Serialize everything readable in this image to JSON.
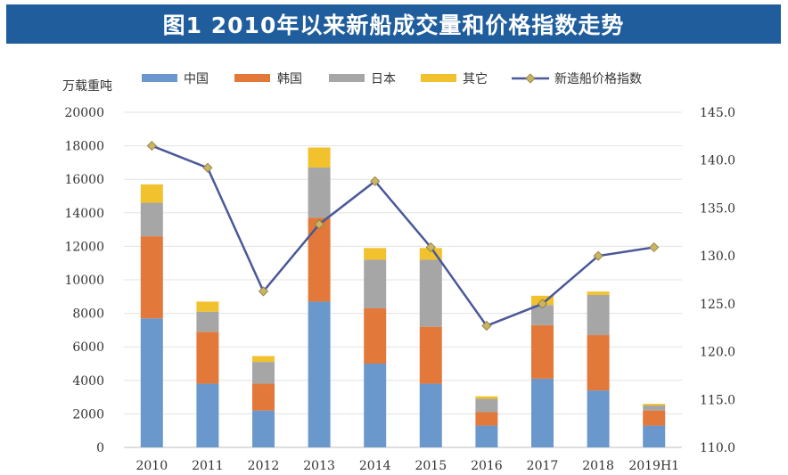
{
  "title": "图1 2010年以来新船成交量和价格指数走势",
  "unit_label": "万载重吨",
  "colors": {
    "中国": "#6a98cc",
    "韩国": "#e2793a",
    "日本": "#a6a6a6",
    "其它": "#f2c12e",
    "index_line": "#4a5899",
    "index_marker": "#c9b466",
    "title_bg": "#1f5d9c"
  },
  "chart_data": {
    "type": "bar",
    "stacked": true,
    "categories": [
      "2010",
      "2011",
      "2012",
      "2013",
      "2014",
      "2015",
      "2016",
      "2017",
      "2018",
      "2019H1"
    ],
    "series": [
      {
        "name": "中国",
        "values": [
          7700,
          3800,
          2200,
          8700,
          5000,
          3800,
          1300,
          4100,
          3400,
          1300
        ]
      },
      {
        "name": "韩国",
        "values": [
          4900,
          3100,
          1600,
          5000,
          3300,
          3400,
          800,
          3200,
          3300,
          900
        ]
      },
      {
        "name": "日本",
        "values": [
          2000,
          1200,
          1300,
          3000,
          2900,
          4000,
          800,
          1200,
          2400,
          300
        ]
      },
      {
        "name": "其它",
        "values": [
          1100,
          600,
          350,
          1200,
          700,
          700,
          150,
          550,
          200,
          100
        ]
      }
    ],
    "line": {
      "name": "新造船价格指数",
      "axis": "right",
      "values": [
        141.5,
        139.2,
        126.3,
        133.3,
        137.8,
        130.9,
        122.7,
        125.0,
        130.0,
        130.9
      ]
    },
    "y_left": {
      "min": 0,
      "max": 20000,
      "ticks": [
        "0",
        "2000",
        "4000",
        "6000",
        "8000",
        "10000",
        "12000",
        "14000",
        "16000",
        "18000",
        "20000"
      ]
    },
    "y_right": {
      "min": 110.0,
      "max": 145.0,
      "ticks": [
        "110.0",
        "115.0",
        "120.0",
        "125.0",
        "130.0",
        "135.0",
        "140.0",
        "145.0"
      ]
    },
    "grid": true,
    "legend_position": "top"
  }
}
